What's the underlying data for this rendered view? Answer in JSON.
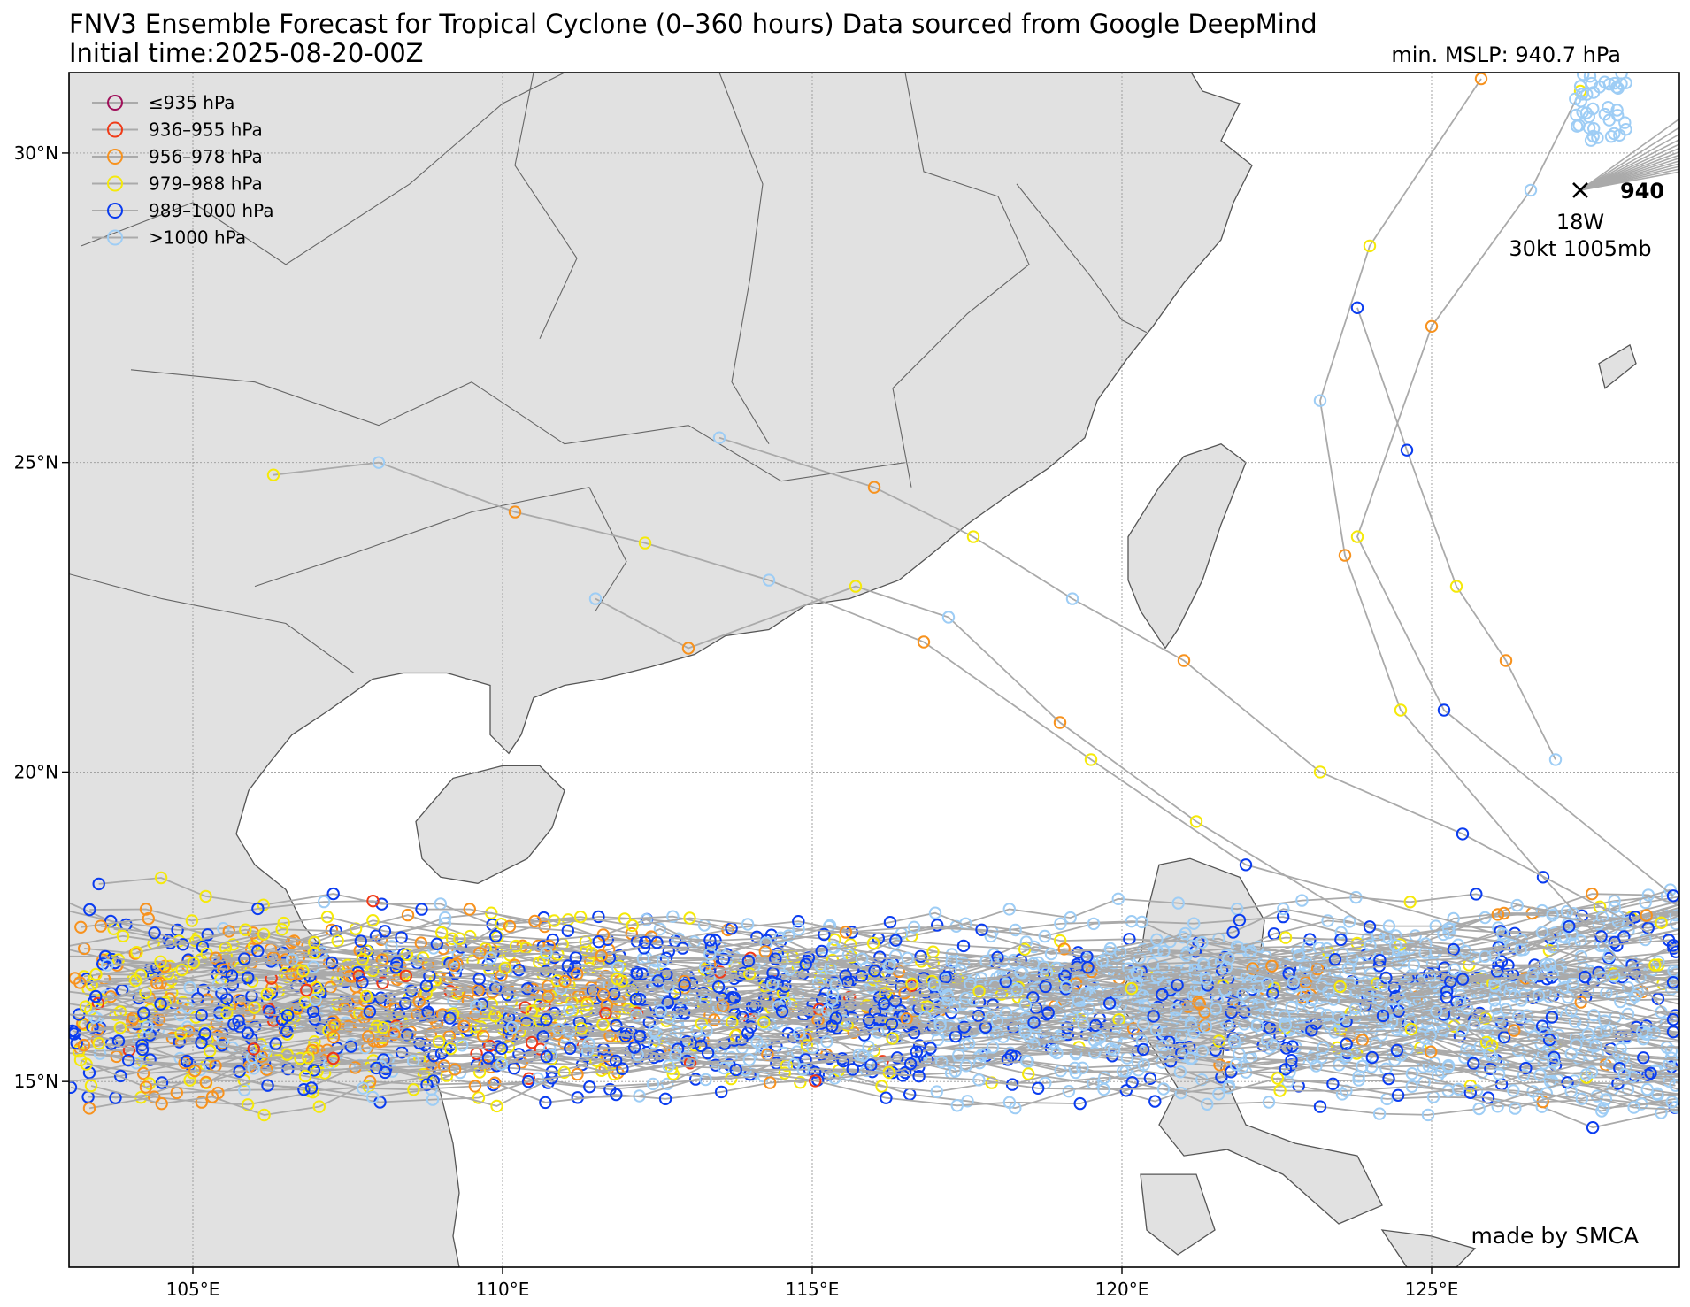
{
  "title": {
    "line1": "FNV3 Ensemble Forecast for Tropical Cyclone (0–360 hours) Data sourced from Google DeepMind",
    "line2": "Initial time:2025-08-20-00Z",
    "min_mslp": "min. MSLP: 940.7 hPa"
  },
  "map": {
    "lon_range": [
      103,
      129
    ],
    "lat_range": [
      12,
      31.3
    ],
    "lon_ticks": [
      105,
      110,
      115,
      120,
      125
    ],
    "lat_ticks": [
      15,
      20,
      25,
      30
    ],
    "lon_tick_labels": [
      "105°E",
      "110°E",
      "115°E",
      "120°E",
      "125°E"
    ],
    "lat_tick_labels": [
      "15°N",
      "20°N",
      "25°N",
      "30°N"
    ],
    "land_color": "#e1e1e1",
    "coast_color": "#555555",
    "grid": true
  },
  "legend": {
    "items": [
      {
        "label": "≤935 hPa",
        "color": "#a0105a"
      },
      {
        "label": "936–955 hPa",
        "color": "#f03a17"
      },
      {
        "label": "956–978 hPa",
        "color": "#f7921e"
      },
      {
        "label": "979–988 hPa",
        "color": "#f5e90a"
      },
      {
        "label": "989–1000 hPa",
        "color": "#0a3cf0"
      },
      {
        "label": ">1000 hPa",
        "color": "#9ecdf5"
      }
    ]
  },
  "storm": {
    "name": "18W",
    "info": "30kt 1005mb",
    "min_label": "940",
    "lon": 127.4,
    "lat": 29.4
  },
  "credit": "made by SMCA",
  "track_color": "#aaaaaa"
}
